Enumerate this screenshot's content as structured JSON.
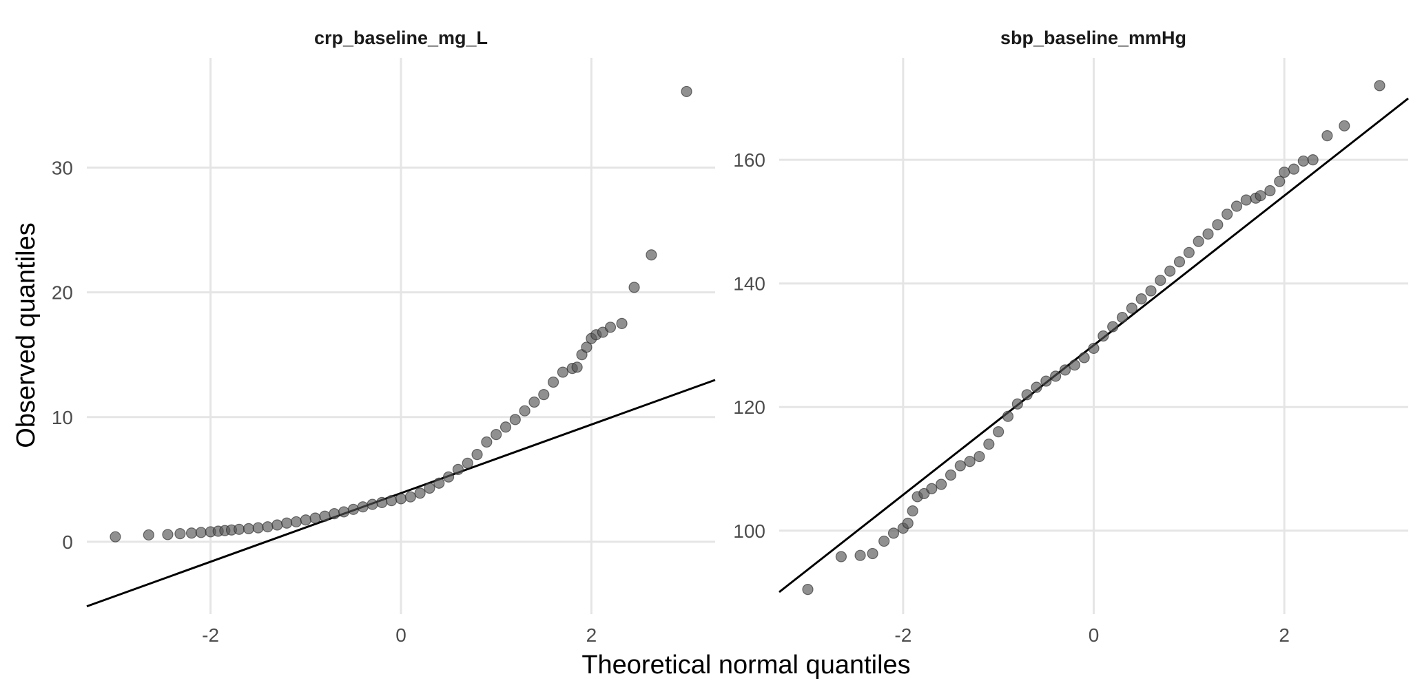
{
  "chart_data": {
    "type": "scatter",
    "xlabel": "Theoretical normal quantiles",
    "ylabel": "Observed quantiles",
    "grid": true,
    "panels": [
      {
        "title": "crp_baseline_mg_L",
        "xlim": [
          -3.3,
          3.3
        ],
        "ylim": [
          -5.8,
          38.8
        ],
        "x_ticks": [
          "-2",
          "0",
          "2"
        ],
        "x_tick_values": [
          -2,
          0,
          2
        ],
        "y_ticks": [
          "0",
          "10",
          "20",
          "30"
        ],
        "y_tick_values": [
          0,
          10,
          20,
          30
        ],
        "reference_line": {
          "intercept": 3.9,
          "slope": 2.75
        },
        "points": [
          [
            -3.0,
            0.4
          ],
          [
            -2.65,
            0.55
          ],
          [
            -2.45,
            0.58
          ],
          [
            -2.32,
            0.65
          ],
          [
            -2.2,
            0.7
          ],
          [
            -2.1,
            0.75
          ],
          [
            -2.0,
            0.8
          ],
          [
            -1.92,
            0.85
          ],
          [
            -1.85,
            0.9
          ],
          [
            -1.78,
            0.95
          ],
          [
            -1.7,
            1.0
          ],
          [
            -1.6,
            1.05
          ],
          [
            -1.5,
            1.12
          ],
          [
            -1.4,
            1.2
          ],
          [
            -1.3,
            1.35
          ],
          [
            -1.2,
            1.5
          ],
          [
            -1.1,
            1.6
          ],
          [
            -1.0,
            1.75
          ],
          [
            -0.9,
            1.9
          ],
          [
            -0.8,
            2.05
          ],
          [
            -0.7,
            2.25
          ],
          [
            -0.6,
            2.4
          ],
          [
            -0.5,
            2.6
          ],
          [
            -0.4,
            2.8
          ],
          [
            -0.3,
            3.0
          ],
          [
            -0.2,
            3.15
          ],
          [
            -0.1,
            3.3
          ],
          [
            0.0,
            3.45
          ],
          [
            0.1,
            3.6
          ],
          [
            0.2,
            3.9
          ],
          [
            0.3,
            4.3
          ],
          [
            0.4,
            4.7
          ],
          [
            0.5,
            5.2
          ],
          [
            0.6,
            5.8
          ],
          [
            0.7,
            6.3
          ],
          [
            0.8,
            7.0
          ],
          [
            0.9,
            8.0
          ],
          [
            1.0,
            8.6
          ],
          [
            1.1,
            9.2
          ],
          [
            1.2,
            9.8
          ],
          [
            1.3,
            10.5
          ],
          [
            1.4,
            11.2
          ],
          [
            1.5,
            11.8
          ],
          [
            1.6,
            12.8
          ],
          [
            1.7,
            13.6
          ],
          [
            1.8,
            13.9
          ],
          [
            1.85,
            14.0
          ],
          [
            1.9,
            15.0
          ],
          [
            1.95,
            15.6
          ],
          [
            2.0,
            16.3
          ],
          [
            2.05,
            16.6
          ],
          [
            2.12,
            16.8
          ],
          [
            2.2,
            17.2
          ],
          [
            2.32,
            17.5
          ],
          [
            2.45,
            20.4
          ],
          [
            2.63,
            23.0
          ],
          [
            3.0,
            36.1
          ]
        ]
      },
      {
        "title": "sbp_baseline_mmHg",
        "xlim": [
          -3.3,
          3.3
        ],
        "ylim": [
          86.5,
          176.5
        ],
        "x_ticks": [
          "-2",
          "0",
          "2"
        ],
        "x_tick_values": [
          -2,
          0,
          2
        ],
        "y_ticks": [
          "100",
          "120",
          "140",
          "160"
        ],
        "y_tick_values": [
          100,
          120,
          140,
          160
        ],
        "reference_line": {
          "intercept": 130.0,
          "slope": 12.1
        },
        "points": [
          [
            -3.0,
            90.5
          ],
          [
            -2.65,
            95.8
          ],
          [
            -2.45,
            96.0
          ],
          [
            -2.32,
            96.3
          ],
          [
            -2.2,
            98.3
          ],
          [
            -2.1,
            99.6
          ],
          [
            -2.0,
            100.4
          ],
          [
            -1.95,
            101.2
          ],
          [
            -1.9,
            103.2
          ],
          [
            -1.85,
            105.5
          ],
          [
            -1.78,
            106.0
          ],
          [
            -1.7,
            106.8
          ],
          [
            -1.6,
            107.5
          ],
          [
            -1.5,
            109.0
          ],
          [
            -1.4,
            110.5
          ],
          [
            -1.3,
            111.2
          ],
          [
            -1.2,
            112.0
          ],
          [
            -1.1,
            114.0
          ],
          [
            -1.0,
            116.0
          ],
          [
            -0.9,
            118.5
          ],
          [
            -0.8,
            120.5
          ],
          [
            -0.7,
            122.0
          ],
          [
            -0.6,
            123.2
          ],
          [
            -0.5,
            124.2
          ],
          [
            -0.4,
            125.0
          ],
          [
            -0.3,
            126.0
          ],
          [
            -0.2,
            126.8
          ],
          [
            -0.1,
            128.0
          ],
          [
            0.0,
            129.5
          ],
          [
            0.1,
            131.5
          ],
          [
            0.2,
            133.0
          ],
          [
            0.3,
            134.5
          ],
          [
            0.4,
            136.0
          ],
          [
            0.5,
            137.5
          ],
          [
            0.6,
            138.8
          ],
          [
            0.7,
            140.5
          ],
          [
            0.8,
            142.0
          ],
          [
            0.9,
            143.5
          ],
          [
            1.0,
            145.0
          ],
          [
            1.1,
            146.8
          ],
          [
            1.2,
            148.0
          ],
          [
            1.3,
            149.5
          ],
          [
            1.4,
            151.2
          ],
          [
            1.5,
            152.5
          ],
          [
            1.6,
            153.5
          ],
          [
            1.7,
            153.8
          ],
          [
            1.75,
            154.2
          ],
          [
            1.85,
            155.0
          ],
          [
            1.95,
            156.5
          ],
          [
            2.0,
            158.0
          ],
          [
            2.1,
            158.5
          ],
          [
            2.2,
            159.8
          ],
          [
            2.3,
            160.0
          ],
          [
            2.45,
            163.9
          ],
          [
            2.63,
            165.5
          ],
          [
            3.0,
            172.0
          ]
        ]
      }
    ]
  }
}
